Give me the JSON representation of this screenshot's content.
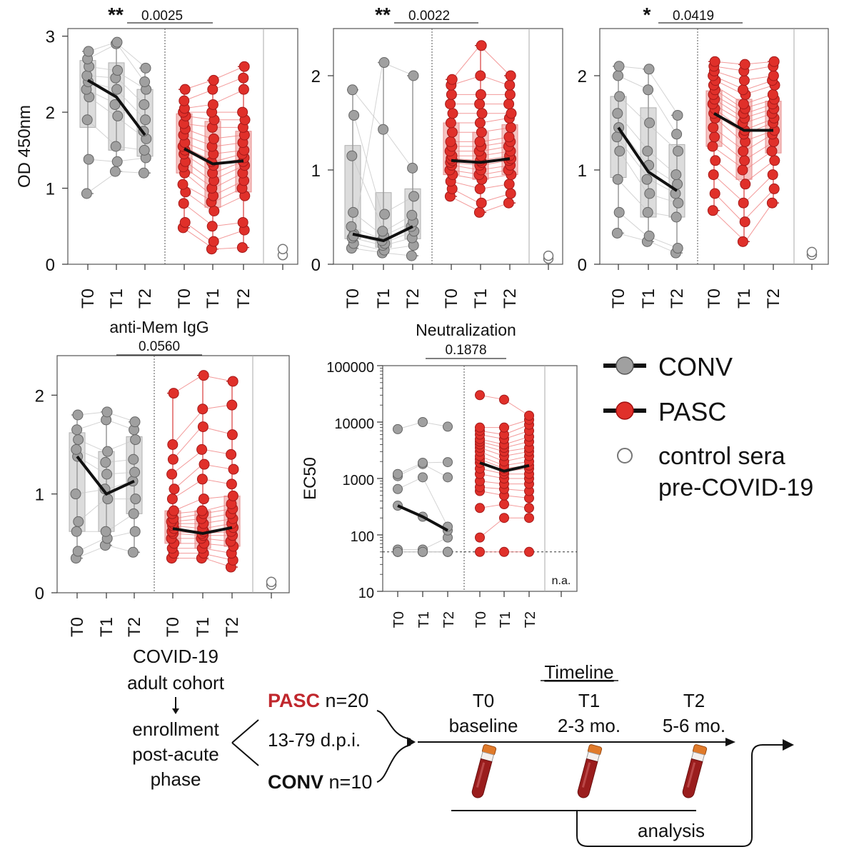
{
  "colors": {
    "conv": "#a0a0a0",
    "conv_box": "#dcdcdc",
    "pasc": "#e0302a",
    "pasc_box": "#f6c2c0",
    "pasc_line": "#f08080",
    "median": "#111111",
    "axis": "#222222",
    "control": "#777777",
    "accent_text": "#c0272d"
  },
  "chart_data": [
    {
      "type": "box-paired",
      "title": "",
      "ylabel": "OD 450nm",
      "ylim": [
        0,
        3.1
      ],
      "yticks": [
        0,
        1,
        2,
        3
      ],
      "ytick_labels": [
        "0",
        "1",
        "2",
        "3"
      ],
      "categories": [
        "T0",
        "T1",
        "T2",
        "T0",
        "T1",
        "T2"
      ],
      "significance": {
        "stars": "**",
        "p": "0.0025"
      },
      "series": [
        {
          "name": "CONV",
          "medians": [
            2.42,
            2.2,
            1.7
          ],
          "q1": [
            1.8,
            1.5,
            1.42
          ],
          "q3": [
            2.68,
            2.65,
            2.3
          ],
          "min": [
            0.93,
            1.22,
            1.2
          ],
          "max": [
            2.8,
            2.92,
            2.58
          ],
          "points": [
            [
              0.93,
              1.38,
              1.9,
              2.2,
              2.3,
              2.4,
              2.48,
              2.6,
              2.7,
              2.8
            ],
            [
              1.22,
              1.35,
              1.55,
              1.95,
              2.1,
              2.3,
              2.45,
              2.55,
              2.9,
              2.92
            ],
            [
              1.2,
              1.4,
              1.5,
              1.65,
              1.75,
              1.9,
              2.1,
              2.3,
              2.4,
              2.58
            ]
          ]
        },
        {
          "name": "PASC",
          "medians": [
            1.52,
            1.32,
            1.36
          ],
          "q1": [
            1.2,
            0.75,
            0.95
          ],
          "q3": [
            1.98,
            1.88,
            1.75
          ],
          "min": [
            0.48,
            0.2,
            0.22
          ],
          "max": [
            2.3,
            2.42,
            2.6
          ],
          "points": [
            [
              0.48,
              0.55,
              0.8,
              0.95,
              1.05,
              1.2,
              1.28,
              1.35,
              1.45,
              1.5,
              1.55,
              1.6,
              1.7,
              1.78,
              1.85,
              1.95,
              2.0,
              2.05,
              2.15,
              2.3
            ],
            [
              0.2,
              0.3,
              0.5,
              0.7,
              0.82,
              0.9,
              1.0,
              1.1,
              1.2,
              1.3,
              1.35,
              1.45,
              1.55,
              1.65,
              1.8,
              1.9,
              2.0,
              2.1,
              2.3,
              2.42
            ],
            [
              0.22,
              0.45,
              0.55,
              0.9,
              1.0,
              1.1,
              1.2,
              1.3,
              1.35,
              1.4,
              1.45,
              1.5,
              1.6,
              1.7,
              1.8,
              1.9,
              2.0,
              2.3,
              2.45,
              2.6
            ]
          ]
        }
      ],
      "control": [
        0.12,
        0.2
      ]
    },
    {
      "type": "box-paired",
      "title": "",
      "ylabel": "",
      "ylim": [
        0,
        2.5
      ],
      "yticks": [
        0,
        1,
        2
      ],
      "ytick_labels": [
        "0",
        "1",
        "2"
      ],
      "categories": [
        "T0",
        "T1",
        "T2",
        "T0",
        "T1",
        "T2"
      ],
      "significance": {
        "stars": "**",
        "p": "0.0022"
      },
      "series": [
        {
          "name": "CONV",
          "medians": [
            0.32,
            0.25,
            0.4
          ],
          "q1": [
            0.27,
            0.18,
            0.27
          ],
          "q3": [
            1.26,
            0.76,
            0.8
          ],
          "min": [
            0.17,
            0.12,
            0.09
          ],
          "max": [
            1.85,
            2.14,
            2.0
          ],
          "points": [
            [
              0.17,
              0.22,
              0.28,
              0.32,
              0.4,
              0.55,
              1.15,
              1.58,
              1.85,
              0.3
            ],
            [
              0.12,
              0.15,
              0.2,
              0.22,
              0.25,
              0.3,
              0.35,
              0.53,
              1.43,
              2.14
            ],
            [
              0.09,
              0.2,
              0.28,
              0.35,
              0.4,
              0.45,
              0.52,
              0.72,
              1.02,
              2.0
            ]
          ]
        },
        {
          "name": "PASC",
          "medians": [
            1.1,
            1.08,
            1.12
          ],
          "q1": [
            0.95,
            0.9,
            0.95
          ],
          "q3": [
            1.5,
            1.4,
            1.48
          ],
          "min": [
            0.72,
            0.55,
            0.65
          ],
          "max": [
            1.96,
            2.32,
            2.0
          ],
          "points": [
            [
              0.72,
              0.8,
              0.88,
              0.95,
              1.0,
              1.05,
              1.08,
              1.1,
              1.12,
              1.15,
              1.2,
              1.25,
              1.3,
              1.4,
              1.5,
              1.6,
              1.7,
              1.8,
              1.9,
              1.96
            ],
            [
              0.55,
              0.65,
              0.8,
              0.9,
              0.95,
              1.0,
              1.05,
              1.08,
              1.1,
              1.15,
              1.2,
              1.25,
              1.3,
              1.4,
              1.5,
              1.6,
              1.7,
              1.8,
              2.0,
              2.32
            ],
            [
              0.65,
              0.75,
              0.85,
              0.95,
              1.0,
              1.05,
              1.1,
              1.12,
              1.15,
              1.2,
              1.25,
              1.3,
              1.35,
              1.45,
              1.55,
              1.6,
              1.7,
              1.8,
              1.9,
              2.0
            ]
          ]
        }
      ],
      "control": [
        0.06,
        0.09
      ]
    },
    {
      "type": "box-paired",
      "title": "",
      "ylabel": "",
      "ylim": [
        0,
        2.5
      ],
      "yticks": [
        0,
        1,
        2
      ],
      "ytick_labels": [
        "0",
        "1",
        "2"
      ],
      "categories": [
        "T0",
        "T1",
        "T2",
        "T0",
        "T1",
        "T2"
      ],
      "significance": {
        "stars": "*",
        "p": "0.0419"
      },
      "series": [
        {
          "name": "CONV",
          "medians": [
            1.45,
            0.98,
            0.78
          ],
          "q1": [
            0.92,
            0.5,
            0.5
          ],
          "q3": [
            1.78,
            1.66,
            1.27
          ],
          "min": [
            0.33,
            0.24,
            0.12
          ],
          "max": [
            2.1,
            2.07,
            1.58
          ],
          "points": [
            [
              0.33,
              0.55,
              0.9,
              1.2,
              1.35,
              1.45,
              1.6,
              1.78,
              2.0,
              2.1
            ],
            [
              0.24,
              0.3,
              0.55,
              0.75,
              0.9,
              1.05,
              1.2,
              1.5,
              1.85,
              2.07
            ],
            [
              0.12,
              0.17,
              0.5,
              0.65,
              0.75,
              0.85,
              0.95,
              1.2,
              1.38,
              1.58
            ]
          ]
        },
        {
          "name": "PASC",
          "medians": [
            1.6,
            1.42,
            1.42
          ],
          "q1": [
            1.25,
            0.9,
            1.18
          ],
          "q3": [
            1.84,
            1.75,
            1.73
          ],
          "min": [
            0.57,
            0.24,
            0.65
          ],
          "max": [
            2.15,
            2.12,
            2.15
          ],
          "points": [
            [
              0.57,
              0.75,
              0.95,
              1.1,
              1.25,
              1.35,
              1.45,
              1.55,
              1.6,
              1.65,
              1.7,
              1.75,
              1.8,
              1.85,
              1.9,
              1.95,
              2.0,
              2.05,
              2.1,
              2.15
            ],
            [
              0.24,
              0.45,
              0.65,
              0.85,
              1.0,
              1.1,
              1.2,
              1.3,
              1.38,
              1.42,
              1.5,
              1.55,
              1.6,
              1.65,
              1.7,
              1.8,
              1.85,
              1.95,
              2.05,
              2.12
            ],
            [
              0.65,
              0.8,
              0.95,
              1.1,
              1.2,
              1.3,
              1.38,
              1.42,
              1.5,
              1.55,
              1.6,
              1.65,
              1.7,
              1.75,
              1.8,
              1.9,
              1.95,
              2.0,
              2.1,
              2.15
            ]
          ]
        }
      ],
      "control": [
        0.1,
        0.13
      ]
    },
    {
      "type": "box-paired",
      "title": "anti-Mem IgG",
      "ylabel": "",
      "ylim": [
        0,
        2.4
      ],
      "yticks": [
        0,
        1,
        2
      ],
      "ytick_labels": [
        "0",
        "1",
        "2"
      ],
      "categories": [
        "T0",
        "T1",
        "T2",
        "T0",
        "T1",
        "T2"
      ],
      "significance": {
        "stars": "",
        "p": "0.0560"
      },
      "series": [
        {
          "name": "CONV",
          "medians": [
            1.38,
            1.0,
            1.13
          ],
          "q1": [
            0.62,
            0.62,
            0.8
          ],
          "q3": [
            1.62,
            1.43,
            1.58
          ],
          "min": [
            0.35,
            0.48,
            0.41
          ],
          "max": [
            1.8,
            1.83,
            1.73
          ],
          "points": [
            [
              0.35,
              0.42,
              0.62,
              0.72,
              1.0,
              1.38,
              1.45,
              1.55,
              1.65,
              1.8
            ],
            [
              0.48,
              0.55,
              0.62,
              0.95,
              1.05,
              1.2,
              1.32,
              1.43,
              1.75,
              1.83
            ],
            [
              0.41,
              0.62,
              0.8,
              0.95,
              1.13,
              1.22,
              1.35,
              1.55,
              1.65,
              1.73
            ]
          ]
        },
        {
          "name": "PASC",
          "medians": [
            0.65,
            0.6,
            0.66
          ],
          "q1": [
            0.5,
            0.45,
            0.47
          ],
          "q3": [
            0.83,
            0.83,
            0.98
          ],
          "min": [
            0.35,
            0.35,
            0.26
          ],
          "max": [
            2.02,
            2.2,
            2.14
          ],
          "points": [
            [
              0.35,
              0.4,
              0.45,
              0.5,
              0.55,
              0.6,
              0.62,
              0.65,
              0.68,
              0.7,
              0.72,
              0.75,
              0.8,
              0.83,
              0.95,
              1.05,
              1.2,
              1.35,
              1.5,
              2.02
            ],
            [
              0.35,
              0.4,
              0.45,
              0.5,
              0.55,
              0.58,
              0.6,
              0.62,
              0.65,
              0.7,
              0.75,
              0.8,
              0.83,
              0.95,
              1.15,
              1.3,
              1.45,
              1.68,
              1.86,
              2.2
            ],
            [
              0.26,
              0.33,
              0.4,
              0.47,
              0.52,
              0.58,
              0.62,
              0.66,
              0.7,
              0.75,
              0.8,
              0.85,
              0.9,
              0.98,
              1.1,
              1.25,
              1.4,
              1.6,
              1.9,
              2.14
            ]
          ]
        }
      ],
      "control": [
        0.08,
        0.11
      ]
    },
    {
      "type": "dot-paired-log",
      "title": "Neutralization",
      "ylabel": "EC50",
      "ylim": [
        10,
        100000
      ],
      "yticks": [
        10,
        100,
        1000,
        10000,
        100000
      ],
      "ytick_labels": [
        "10",
        "100",
        "1000",
        "10000",
        "100000"
      ],
      "threshold": 50,
      "categories": [
        "T0",
        "T1",
        "T2",
        "T0",
        "T1",
        "T2"
      ],
      "significance": {
        "stars": "",
        "p": "0.1878"
      },
      "na_label": "n.a.",
      "series": [
        {
          "name": "CONV",
          "medians": [
            330,
            210,
            120
          ],
          "points": [
            [
              50,
              50,
              50,
              55,
              330,
              650,
              1100,
              1200,
              7500,
              50
            ],
            [
              50,
              50,
              50,
              55,
              210,
              1050,
              1800,
              1900,
              10000,
              50
            ],
            [
              50,
              50,
              50,
              90,
              120,
              140,
              1050,
              1950,
              8300,
              50
            ]
          ]
        },
        {
          "name": "PASC",
          "medians": [
            1900,
            1350,
            1700
          ],
          "points": [
            [
              50,
              90,
              300,
              600,
              700,
              900,
              1200,
              1500,
              1900,
              2200,
              2500,
              3000,
              3500,
              4000,
              4500,
              5000,
              6000,
              7000,
              8000,
              30000
            ],
            [
              50,
              200,
              350,
              500,
              650,
              800,
              1000,
              1200,
              1350,
              1500,
              1700,
              2000,
              2500,
              3000,
              3500,
              4000,
              5000,
              6000,
              8000,
              25000
            ],
            [
              50,
              200,
              300,
              450,
              600,
              800,
              1000,
              1200,
              1500,
              1700,
              2000,
              2500,
              3000,
              3500,
              4500,
              5500,
              7000,
              9000,
              11000,
              13000
            ]
          ]
        }
      ]
    }
  ],
  "legend": {
    "conv": "CONV",
    "pasc": "PASC",
    "control_line1": "control sera",
    "control_line2": "pre-COVID-19"
  },
  "schematic": {
    "cohort_line1": "COVID-19",
    "cohort_line2": "adult cohort",
    "enroll_line1": "enrollment",
    "enroll_line2": "post-acute",
    "enroll_line3": "phase",
    "pasc_label": "PASC",
    "pasc_n": "n=20",
    "dpi": "13-79 d.p.i.",
    "conv_label": "CONV",
    "conv_n": "n=10",
    "timeline_title": "Timeline",
    "t0": "T0",
    "t0_sub": "baseline",
    "t1": "T1",
    "t1_sub": "2-3 mo.",
    "t2": "T2",
    "t2_sub": "5-6 mo.",
    "analysis": "analysis"
  }
}
